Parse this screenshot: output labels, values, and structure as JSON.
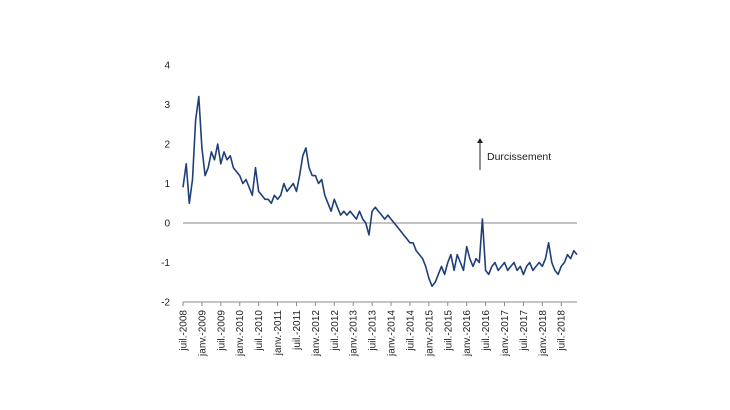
{
  "chart_data": {
    "type": "line",
    "title": "",
    "xlabel": "",
    "ylabel": "",
    "ylim": [
      -2,
      4
    ],
    "yticks": [
      -2,
      -1,
      0,
      1,
      2,
      3,
      4
    ],
    "xlim": [
      "2008-07",
      "2018-12"
    ],
    "xticks": [
      {
        "date": "2008-07",
        "label": "juil.-2008"
      },
      {
        "date": "2009-01",
        "label": "janv.-2009"
      },
      {
        "date": "2009-07",
        "label": "juil.-2009"
      },
      {
        "date": "2010-01",
        "label": "janv.-2010"
      },
      {
        "date": "2010-07",
        "label": "juil.-2010"
      },
      {
        "date": "2011-01",
        "label": "janv.-2011"
      },
      {
        "date": "2011-07",
        "label": "juil.-2011"
      },
      {
        "date": "2012-01",
        "label": "janv.-2012"
      },
      {
        "date": "2012-07",
        "label": "juil.-2012"
      },
      {
        "date": "2013-01",
        "label": "janv.-2013"
      },
      {
        "date": "2013-07",
        "label": "juil.-2013"
      },
      {
        "date": "2014-01",
        "label": "janv.-2014"
      },
      {
        "date": "2014-07",
        "label": "juil.-2014"
      },
      {
        "date": "2015-01",
        "label": "janv.-2015"
      },
      {
        "date": "2015-07",
        "label": "juil.-2015"
      },
      {
        "date": "2016-01",
        "label": "janv.-2016"
      },
      {
        "date": "2016-07",
        "label": "juil.-2016"
      },
      {
        "date": "2017-01",
        "label": "janv.-2017"
      },
      {
        "date": "2017-07",
        "label": "juil.-2017"
      },
      {
        "date": "2018-01",
        "label": "janv.-2018"
      },
      {
        "date": "2018-07",
        "label": "juil.-2018"
      }
    ],
    "grid": false,
    "zero_line": true,
    "annotation": {
      "text": "Durcissement",
      "arrow": "up"
    },
    "series": [
      {
        "color": "#1f3f7a",
        "points": [
          [
            "2008-07",
            0.9
          ],
          [
            "2008-08",
            1.5
          ],
          [
            "2008-09",
            0.5
          ],
          [
            "2008-10",
            1.1
          ],
          [
            "2008-11",
            2.6
          ],
          [
            "2008-12",
            3.2
          ],
          [
            "2009-01",
            1.9
          ],
          [
            "2009-02",
            1.2
          ],
          [
            "2009-03",
            1.4
          ],
          [
            "2009-04",
            1.8
          ],
          [
            "2009-05",
            1.6
          ],
          [
            "2009-06",
            2.0
          ],
          [
            "2009-07",
            1.5
          ],
          [
            "2009-08",
            1.8
          ],
          [
            "2009-09",
            1.6
          ],
          [
            "2009-10",
            1.7
          ],
          [
            "2009-11",
            1.4
          ],
          [
            "2009-12",
            1.3
          ],
          [
            "2010-01",
            1.2
          ],
          [
            "2010-02",
            1.0
          ],
          [
            "2010-03",
            1.1
          ],
          [
            "2010-04",
            0.9
          ],
          [
            "2010-05",
            0.7
          ],
          [
            "2010-06",
            1.4
          ],
          [
            "2010-07",
            0.8
          ],
          [
            "2010-08",
            0.7
          ],
          [
            "2010-09",
            0.6
          ],
          [
            "2010-10",
            0.6
          ],
          [
            "2010-11",
            0.5
          ],
          [
            "2010-12",
            0.7
          ],
          [
            "2011-01",
            0.6
          ],
          [
            "2011-02",
            0.7
          ],
          [
            "2011-03",
            1.0
          ],
          [
            "2011-04",
            0.8
          ],
          [
            "2011-05",
            0.9
          ],
          [
            "2011-06",
            1.0
          ],
          [
            "2011-07",
            0.8
          ],
          [
            "2011-08",
            1.2
          ],
          [
            "2011-09",
            1.7
          ],
          [
            "2011-10",
            1.9
          ],
          [
            "2011-11",
            1.4
          ],
          [
            "2011-12",
            1.2
          ],
          [
            "2012-01",
            1.2
          ],
          [
            "2012-02",
            1.0
          ],
          [
            "2012-03",
            1.1
          ],
          [
            "2012-04",
            0.7
          ],
          [
            "2012-05",
            0.5
          ],
          [
            "2012-06",
            0.3
          ],
          [
            "2012-07",
            0.6
          ],
          [
            "2012-08",
            0.4
          ],
          [
            "2012-09",
            0.2
          ],
          [
            "2012-10",
            0.3
          ],
          [
            "2012-11",
            0.2
          ],
          [
            "2012-12",
            0.3
          ],
          [
            "2013-01",
            0.2
          ],
          [
            "2013-02",
            0.1
          ],
          [
            "2013-03",
            0.3
          ],
          [
            "2013-04",
            0.1
          ],
          [
            "2013-05",
            0.0
          ],
          [
            "2013-06",
            -0.3
          ],
          [
            "2013-07",
            0.3
          ],
          [
            "2013-08",
            0.4
          ],
          [
            "2013-09",
            0.3
          ],
          [
            "2013-10",
            0.2
          ],
          [
            "2013-11",
            0.1
          ],
          [
            "2013-12",
            0.2
          ],
          [
            "2014-01",
            0.1
          ],
          [
            "2014-02",
            0.0
          ],
          [
            "2014-03",
            -0.1
          ],
          [
            "2014-04",
            -0.2
          ],
          [
            "2014-05",
            -0.3
          ],
          [
            "2014-06",
            -0.4
          ],
          [
            "2014-07",
            -0.5
          ],
          [
            "2014-08",
            -0.5
          ],
          [
            "2014-09",
            -0.7
          ],
          [
            "2014-10",
            -0.8
          ],
          [
            "2014-11",
            -0.9
          ],
          [
            "2014-12",
            -1.1
          ],
          [
            "2015-01",
            -1.4
          ],
          [
            "2015-02",
            -1.6
          ],
          [
            "2015-03",
            -1.5
          ],
          [
            "2015-04",
            -1.3
          ],
          [
            "2015-05",
            -1.1
          ],
          [
            "2015-06",
            -1.3
          ],
          [
            "2015-07",
            -1.0
          ],
          [
            "2015-08",
            -0.8
          ],
          [
            "2015-09",
            -1.2
          ],
          [
            "2015-10",
            -0.8
          ],
          [
            "2015-11",
            -1.0
          ],
          [
            "2015-12",
            -1.2
          ],
          [
            "2016-01",
            -0.6
          ],
          [
            "2016-02",
            -0.9
          ],
          [
            "2016-03",
            -1.1
          ],
          [
            "2016-04",
            -0.9
          ],
          [
            "2016-05",
            -1.0
          ],
          [
            "2016-06",
            0.1
          ],
          [
            "2016-07",
            -1.2
          ],
          [
            "2016-08",
            -1.3
          ],
          [
            "2016-09",
            -1.1
          ],
          [
            "2016-10",
            -1.0
          ],
          [
            "2016-11",
            -1.2
          ],
          [
            "2016-12",
            -1.1
          ],
          [
            "2017-01",
            -1.0
          ],
          [
            "2017-02",
            -1.2
          ],
          [
            "2017-03",
            -1.1
          ],
          [
            "2017-04",
            -1.0
          ],
          [
            "2017-05",
            -1.2
          ],
          [
            "2017-06",
            -1.1
          ],
          [
            "2017-07",
            -1.3
          ],
          [
            "2017-08",
            -1.1
          ],
          [
            "2017-09",
            -1.0
          ],
          [
            "2017-10",
            -1.2
          ],
          [
            "2017-11",
            -1.1
          ],
          [
            "2017-12",
            -1.0
          ],
          [
            "2018-01",
            -1.1
          ],
          [
            "2018-02",
            -0.9
          ],
          [
            "2018-03",
            -0.5
          ],
          [
            "2018-04",
            -1.0
          ],
          [
            "2018-05",
            -1.2
          ],
          [
            "2018-06",
            -1.3
          ],
          [
            "2018-07",
            -1.1
          ],
          [
            "2018-08",
            -1.0
          ],
          [
            "2018-09",
            -0.8
          ],
          [
            "2018-10",
            -0.9
          ],
          [
            "2018-11",
            -0.7
          ],
          [
            "2018-12",
            -0.8
          ]
        ]
      }
    ]
  }
}
